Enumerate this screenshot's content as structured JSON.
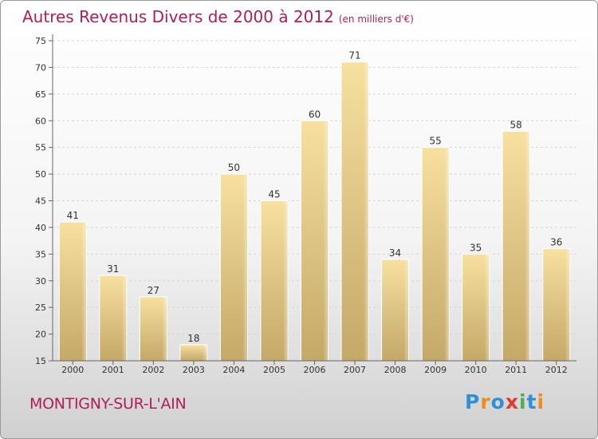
{
  "header": {
    "title": "Autres Revenus Divers de 2000 à 2012",
    "unit": "(en milliers d'€)"
  },
  "footer": {
    "commune": "MONTIGNY-SUR-L'AIN"
  },
  "logo": {
    "text": "Proxiti",
    "letters": [
      "P",
      "r",
      "o",
      "x",
      "i",
      "t",
      "i"
    ],
    "colors": [
      "#2f8fd8",
      "#f08a1c",
      "#2f8fd8",
      "#e03a2e",
      "#4caf50",
      "#2f8fd8",
      "#f08a1c"
    ]
  },
  "colors": {
    "title": "#b01e5a",
    "bar_light": "#f7e0a0",
    "bar_dark": "#c4a868",
    "axis": "#666666"
  },
  "chart_data": {
    "type": "bar",
    "title": "Autres Revenus Divers de 2000 à 2012",
    "xlabel": "",
    "ylabel": "",
    "categories": [
      "2000",
      "2001",
      "2002",
      "2003",
      "2004",
      "2005",
      "2006",
      "2007",
      "2008",
      "2009",
      "2010",
      "2011",
      "2012"
    ],
    "values": [
      41,
      31,
      27,
      18,
      50,
      45,
      60,
      71,
      34,
      55,
      35,
      58,
      36
    ],
    "ylim": [
      15,
      75
    ],
    "yticks": [
      15,
      20,
      25,
      30,
      35,
      40,
      45,
      50,
      55,
      60,
      65,
      70,
      75
    ],
    "grid": true
  }
}
